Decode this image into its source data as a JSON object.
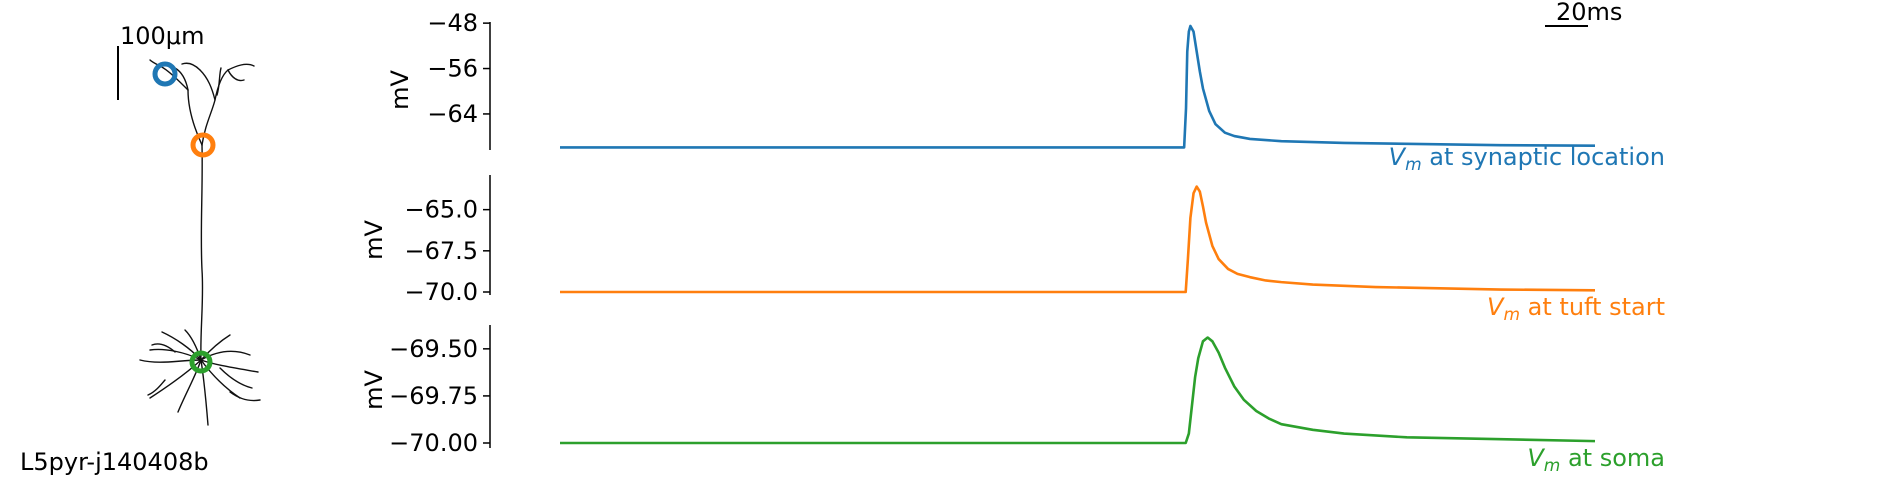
{
  "neuron": {
    "name": "L5pyr-j140408b",
    "scalebar_label": "100μm",
    "marker_colors": {
      "synapse": "#1f77b4",
      "tuft": "#ff7f0e",
      "soma": "#2ca02c"
    },
    "morphology_color": "#111111"
  },
  "time_scalebar_label": "20ms",
  "chart_data": [
    {
      "type": "line",
      "title": "",
      "ylabel": "mV",
      "yticks": [
        -48,
        -56,
        -64
      ],
      "ytick_labels": [
        "−48",
        "−56",
        "−64"
      ],
      "ylim": [
        -70.0,
        -47.8
      ],
      "series": [
        {
          "name": "V_m at synaptic location",
          "label_main": "V",
          "label_sub": "m",
          "label_rest": " at synaptic location",
          "color": "#1f77b4",
          "x": [
            0,
            100,
            199,
            199.6,
            200,
            200.5,
            201,
            202,
            203,
            204,
            205,
            207,
            209,
            212,
            215,
            220,
            230,
            250,
            300,
            330
          ],
          "y": [
            -69.9,
            -69.9,
            -69.9,
            -63.0,
            -53.0,
            -49.5,
            -48.5,
            -49.5,
            -53.0,
            -56.5,
            -59.5,
            -63.5,
            -65.8,
            -67.3,
            -67.9,
            -68.4,
            -68.8,
            -69.1,
            -69.5,
            -69.6
          ]
        }
      ]
    },
    {
      "type": "line",
      "title": "",
      "ylabel": "mV",
      "yticks": [
        -65.0,
        -67.5,
        -70.0
      ],
      "ytick_labels": [
        "−65.0",
        "−67.5",
        "−70.0"
      ],
      "ylim": [
        -70.0,
        -63.2
      ],
      "series": [
        {
          "name": "V_m at tuft start",
          "label_main": "V",
          "label_sub": "m",
          "label_rest": " at tuft start",
          "color": "#ff7f0e",
          "x": [
            0,
            100,
            199.5,
            200.2,
            201,
            202,
            203,
            204,
            205,
            206,
            208,
            210,
            213,
            216,
            220,
            225,
            230,
            240,
            260,
            300,
            330
          ],
          "y": [
            -70.0,
            -70.0,
            -70.0,
            -68.0,
            -65.5,
            -64.0,
            -63.6,
            -63.9,
            -64.8,
            -65.8,
            -67.2,
            -68.0,
            -68.6,
            -68.9,
            -69.1,
            -69.3,
            -69.4,
            -69.55,
            -69.7,
            -69.85,
            -69.9
          ]
        }
      ]
    },
    {
      "type": "line",
      "title": "",
      "ylabel": "mV",
      "yticks": [
        -69.5,
        -69.75,
        -70.0
      ],
      "ytick_labels": [
        "−69.50",
        "−69.75",
        "−70.00"
      ],
      "ylim": [
        -70.0,
        -69.4
      ],
      "series": [
        {
          "name": "V_m at soma",
          "label_main": "V",
          "label_sub": "m",
          "label_rest": " at soma",
          "color": "#2ca02c",
          "x": [
            0,
            100,
            199.5,
            200.5,
            201.5,
            202.5,
            203.5,
            205,
            206.5,
            208,
            210,
            212,
            215,
            218,
            222,
            226,
            230,
            240,
            250,
            270,
            300,
            330
          ],
          "y": [
            -70.0,
            -70.0,
            -70.0,
            -69.95,
            -69.8,
            -69.65,
            -69.55,
            -69.46,
            -69.44,
            -69.46,
            -69.52,
            -69.6,
            -69.7,
            -69.77,
            -69.83,
            -69.87,
            -69.9,
            -69.93,
            -69.95,
            -69.97,
            -69.98,
            -69.99
          ]
        }
      ]
    }
  ]
}
